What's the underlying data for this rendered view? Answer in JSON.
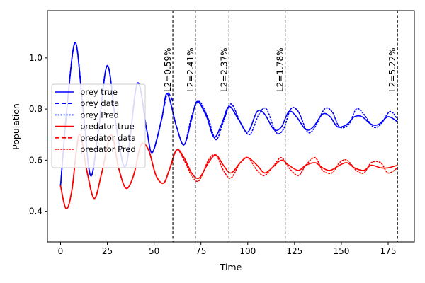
{
  "chart_data": {
    "type": "line",
    "title": "",
    "xlabel": "Time",
    "ylabel": "Population",
    "xlim": [
      -7,
      189
    ],
    "ylim": [
      0.28,
      1.185
    ],
    "xticks": [
      0,
      25,
      50,
      75,
      100,
      125,
      150,
      175
    ],
    "yticks": [
      0.4,
      0.6,
      0.8,
      1.0
    ],
    "xtick_labels": [
      "0",
      "25",
      "50",
      "75",
      "100",
      "125",
      "150",
      "175"
    ],
    "ytick_labels": [
      "0.4",
      "0.6",
      "0.8",
      "1.0"
    ],
    "grid": false,
    "legend_position": "left",
    "colors": {
      "prey": "#0000ff",
      "predator": "#ff0000"
    },
    "series": [
      {
        "name": "prey true",
        "species": "prey",
        "style": "solid",
        "x": [
          0,
          4,
          8,
          12,
          16,
          20,
          25,
          30,
          35,
          41,
          46,
          49,
          54,
          57,
          62,
          66,
          70,
          73,
          78,
          82,
          86,
          90,
          95,
          100,
          105,
          109,
          114,
          118,
          122,
          126,
          131,
          135,
          140,
          144,
          148,
          153,
          157,
          161,
          166,
          170,
          175,
          180
        ],
        "y": [
          0.5,
          0.85,
          1.06,
          0.8,
          0.54,
          0.7,
          0.97,
          0.72,
          0.58,
          0.9,
          0.72,
          0.63,
          0.76,
          0.86,
          0.73,
          0.66,
          0.76,
          0.83,
          0.77,
          0.69,
          0.74,
          0.81,
          0.76,
          0.71,
          0.79,
          0.78,
          0.72,
          0.73,
          0.79,
          0.77,
          0.72,
          0.73,
          0.78,
          0.77,
          0.73,
          0.74,
          0.77,
          0.77,
          0.74,
          0.74,
          0.77,
          0.75
        ]
      },
      {
        "name": "prey data",
        "species": "prey",
        "style": "dashed",
        "x": [
          0,
          4,
          8,
          12,
          16,
          20,
          25,
          30,
          35,
          41,
          46,
          49,
          54,
          57,
          60
        ],
        "y": [
          0.5,
          0.85,
          1.06,
          0.8,
          0.54,
          0.7,
          0.97,
          0.72,
          0.58,
          0.9,
          0.72,
          0.63,
          0.76,
          0.86,
          0.83
        ]
      },
      {
        "name": "prey Pred",
        "species": "prey",
        "style": "dotted",
        "x": [
          0,
          4,
          8,
          12,
          16,
          20,
          25,
          30,
          35,
          41,
          46,
          49,
          54,
          57,
          62,
          66,
          70,
          74,
          79,
          83,
          87,
          91,
          96,
          101,
          106,
          110,
          115,
          119,
          123,
          127,
          132,
          136,
          141,
          145,
          149,
          154,
          158,
          162,
          167,
          171,
          176,
          180
        ],
        "y": [
          0.5,
          0.85,
          1.06,
          0.8,
          0.54,
          0.7,
          0.97,
          0.72,
          0.58,
          0.9,
          0.72,
          0.63,
          0.76,
          0.86,
          0.73,
          0.66,
          0.77,
          0.83,
          0.76,
          0.68,
          0.75,
          0.82,
          0.75,
          0.7,
          0.78,
          0.8,
          0.71,
          0.72,
          0.8,
          0.79,
          0.71,
          0.73,
          0.8,
          0.79,
          0.73,
          0.74,
          0.8,
          0.78,
          0.73,
          0.74,
          0.79,
          0.76
        ]
      },
      {
        "name": "predator true",
        "species": "predator",
        "style": "solid",
        "x": [
          0,
          3,
          6,
          10,
          14,
          18,
          22,
          27,
          31,
          35,
          39,
          43,
          47,
          51,
          55,
          58,
          62,
          66,
          70,
          74,
          79,
          83,
          87,
          91,
          96,
          100,
          105,
          109,
          113,
          118,
          122,
          127,
          131,
          136,
          140,
          144,
          149,
          153,
          157,
          162,
          166,
          171,
          175,
          180
        ],
        "y": [
          0.5,
          0.41,
          0.48,
          0.7,
          0.56,
          0.45,
          0.55,
          0.7,
          0.57,
          0.49,
          0.54,
          0.66,
          0.64,
          0.54,
          0.51,
          0.56,
          0.64,
          0.61,
          0.55,
          0.53,
          0.59,
          0.62,
          0.58,
          0.55,
          0.59,
          0.61,
          0.58,
          0.55,
          0.57,
          0.6,
          0.58,
          0.56,
          0.58,
          0.59,
          0.57,
          0.56,
          0.58,
          0.59,
          0.57,
          0.56,
          0.58,
          0.57,
          0.57,
          0.58
        ]
      },
      {
        "name": "predator data",
        "species": "predator",
        "style": "dashed",
        "x": [
          0,
          3,
          6,
          10,
          14,
          18,
          22,
          27,
          31,
          35,
          39,
          43,
          47,
          51,
          55,
          58,
          60
        ],
        "y": [
          0.5,
          0.41,
          0.48,
          0.7,
          0.56,
          0.45,
          0.55,
          0.7,
          0.57,
          0.49,
          0.54,
          0.66,
          0.64,
          0.54,
          0.51,
          0.56,
          0.6
        ]
      },
      {
        "name": "predator Pred",
        "species": "predator",
        "style": "dotted",
        "x": [
          0,
          3,
          6,
          10,
          14,
          18,
          22,
          27,
          31,
          35,
          39,
          43,
          47,
          51,
          55,
          58,
          62,
          66,
          70,
          74,
          79,
          83,
          87,
          91,
          96,
          100,
          105,
          109,
          114,
          118,
          122,
          127,
          131,
          136,
          140,
          145,
          149,
          153,
          158,
          162,
          166,
          171,
          175,
          180
        ],
        "y": [
          0.5,
          0.41,
          0.48,
          0.7,
          0.56,
          0.45,
          0.55,
          0.7,
          0.57,
          0.49,
          0.54,
          0.66,
          0.64,
          0.54,
          0.51,
          0.56,
          0.64,
          0.6,
          0.54,
          0.52,
          0.6,
          0.62,
          0.56,
          0.53,
          0.59,
          0.61,
          0.56,
          0.54,
          0.58,
          0.61,
          0.57,
          0.54,
          0.58,
          0.61,
          0.56,
          0.55,
          0.59,
          0.6,
          0.56,
          0.55,
          0.59,
          0.59,
          0.55,
          0.57
        ]
      }
    ],
    "vlines": [
      {
        "x": 60,
        "label": "L2=0.59%"
      },
      {
        "x": 72,
        "label": "L2=2.41%"
      },
      {
        "x": 90,
        "label": "L2=2.37%"
      },
      {
        "x": 120,
        "label": "L2=1.78%"
      },
      {
        "x": 180,
        "label": "L2=5.22%"
      }
    ]
  }
}
